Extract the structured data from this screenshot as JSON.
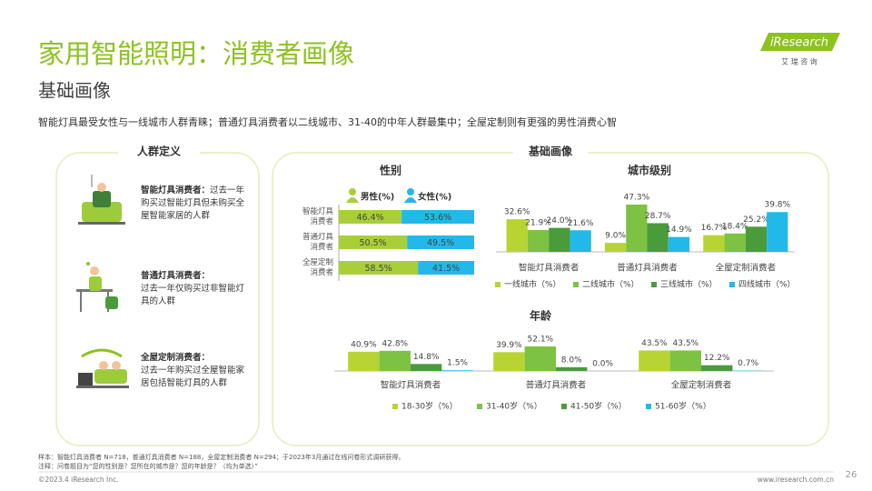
{
  "header": {
    "title": "家用智能照明：消费者画像",
    "subtitle": "基础画像",
    "summary": "智能灯具最受女性与一线城市人群青睐；普通灯具消费者以二线城市、31-40的中年人群最集中；全屋定制则有更强的男性消费心智",
    "logo": "iResearch",
    "logo_cn": "艾 瑞 咨 询"
  },
  "personas": {
    "heading": "人群定义",
    "items": [
      {
        "name": "智能灯具消费者：",
        "desc": "过去一年购买过智能灯具但未购买全屋智能家居的人群"
      },
      {
        "name": "普通灯具消费者：",
        "desc": "过去一年仅购买过非智能灯具的人群"
      },
      {
        "name": "全屋定制消费者：",
        "desc": "过去一年购买过全屋智能家居包括智能灯具的人群"
      }
    ]
  },
  "profile": {
    "heading": "基础画像"
  },
  "chart_data": [
    {
      "type": "bar",
      "title": "性别",
      "orientation": "horizontal",
      "stacked": true,
      "categories": [
        "智能灯具消费者",
        "普通灯具消费者",
        "全屋定制消费者"
      ],
      "series": [
        {
          "name": "男性(%)",
          "color": "#a9cf38",
          "values": [
            46.4,
            50.5,
            58.5
          ],
          "value_labels": [
            "46.4%",
            "50.5%",
            "58.5%"
          ]
        },
        {
          "name": "女性(%)",
          "color": "#22b8ea",
          "values": [
            53.6,
            49.5,
            41.5
          ],
          "value_labels": [
            "53.6%",
            "49.5%",
            "41.5%"
          ]
        }
      ]
    },
    {
      "type": "bar",
      "title": "城市级别",
      "orientation": "vertical",
      "stacked": false,
      "categories": [
        "智能灯具消费者",
        "普通灯具消费者",
        "全屋定制消费者"
      ],
      "series": [
        {
          "name": "一线城市（%）",
          "color": "#b8d432",
          "values": [
            32.6,
            9.0,
            16.7
          ],
          "value_labels": [
            "32.6%",
            "9.0%",
            "16.7%"
          ]
        },
        {
          "name": "二线城市（%）",
          "color": "#7dc242",
          "values": [
            21.9,
            47.3,
            18.4
          ],
          "value_labels": [
            "21.9%",
            "47.3%",
            "18.4%"
          ]
        },
        {
          "name": "三线城市（%）",
          "color": "#4a9b3c",
          "values": [
            24.0,
            28.7,
            25.2
          ],
          "value_labels": [
            "24.0%",
            "28.7%",
            "25.2%"
          ]
        },
        {
          "name": "四线城市（%）",
          "color": "#22b8ea",
          "values": [
            21.6,
            14.9,
            39.8
          ],
          "value_labels": [
            "21.6%",
            "14.9%",
            "39.8%"
          ]
        }
      ]
    },
    {
      "type": "bar",
      "title": "年龄",
      "orientation": "vertical",
      "stacked": false,
      "categories": [
        "智能灯具消费者",
        "普通灯具消费者",
        "全屋定制消费者"
      ],
      "series": [
        {
          "name": "18-30岁（%）",
          "color": "#b8d432",
          "values": [
            40.9,
            39.9,
            43.5
          ],
          "value_labels": [
            "40.9%",
            "39.9%",
            "43.5%"
          ]
        },
        {
          "name": "31-40岁（%）",
          "color": "#7dc242",
          "values": [
            42.8,
            52.1,
            43.5
          ],
          "value_labels": [
            "42.8%",
            "52.1%",
            "43.5%"
          ]
        },
        {
          "name": "41-50岁（%）",
          "color": "#4a9b3c",
          "values": [
            14.8,
            8.0,
            12.2
          ],
          "value_labels": [
            "14.8%",
            "8.0%",
            "12.2%"
          ]
        },
        {
          "name": "51-60岁（%）",
          "color": "#22b8ea",
          "values": [
            1.5,
            0.0,
            0.7
          ],
          "value_labels": [
            "1.5%",
            "0.0%",
            "0.7%"
          ]
        }
      ]
    }
  ],
  "footer": {
    "sample": "样本：智能灯具消费者 N=718，普通灯具消费者 N=188，全屋定制消费者 N=294；于2023年3月通过在线问卷形式调研获得。",
    "note": "注释：问卷题目为“您的性别是？您所在的城市是？您的年龄是？（均为单选）”",
    "copyright": "©2023.4 iResearch Inc.",
    "website": "www.iresearch.com.cn",
    "page": 26
  }
}
